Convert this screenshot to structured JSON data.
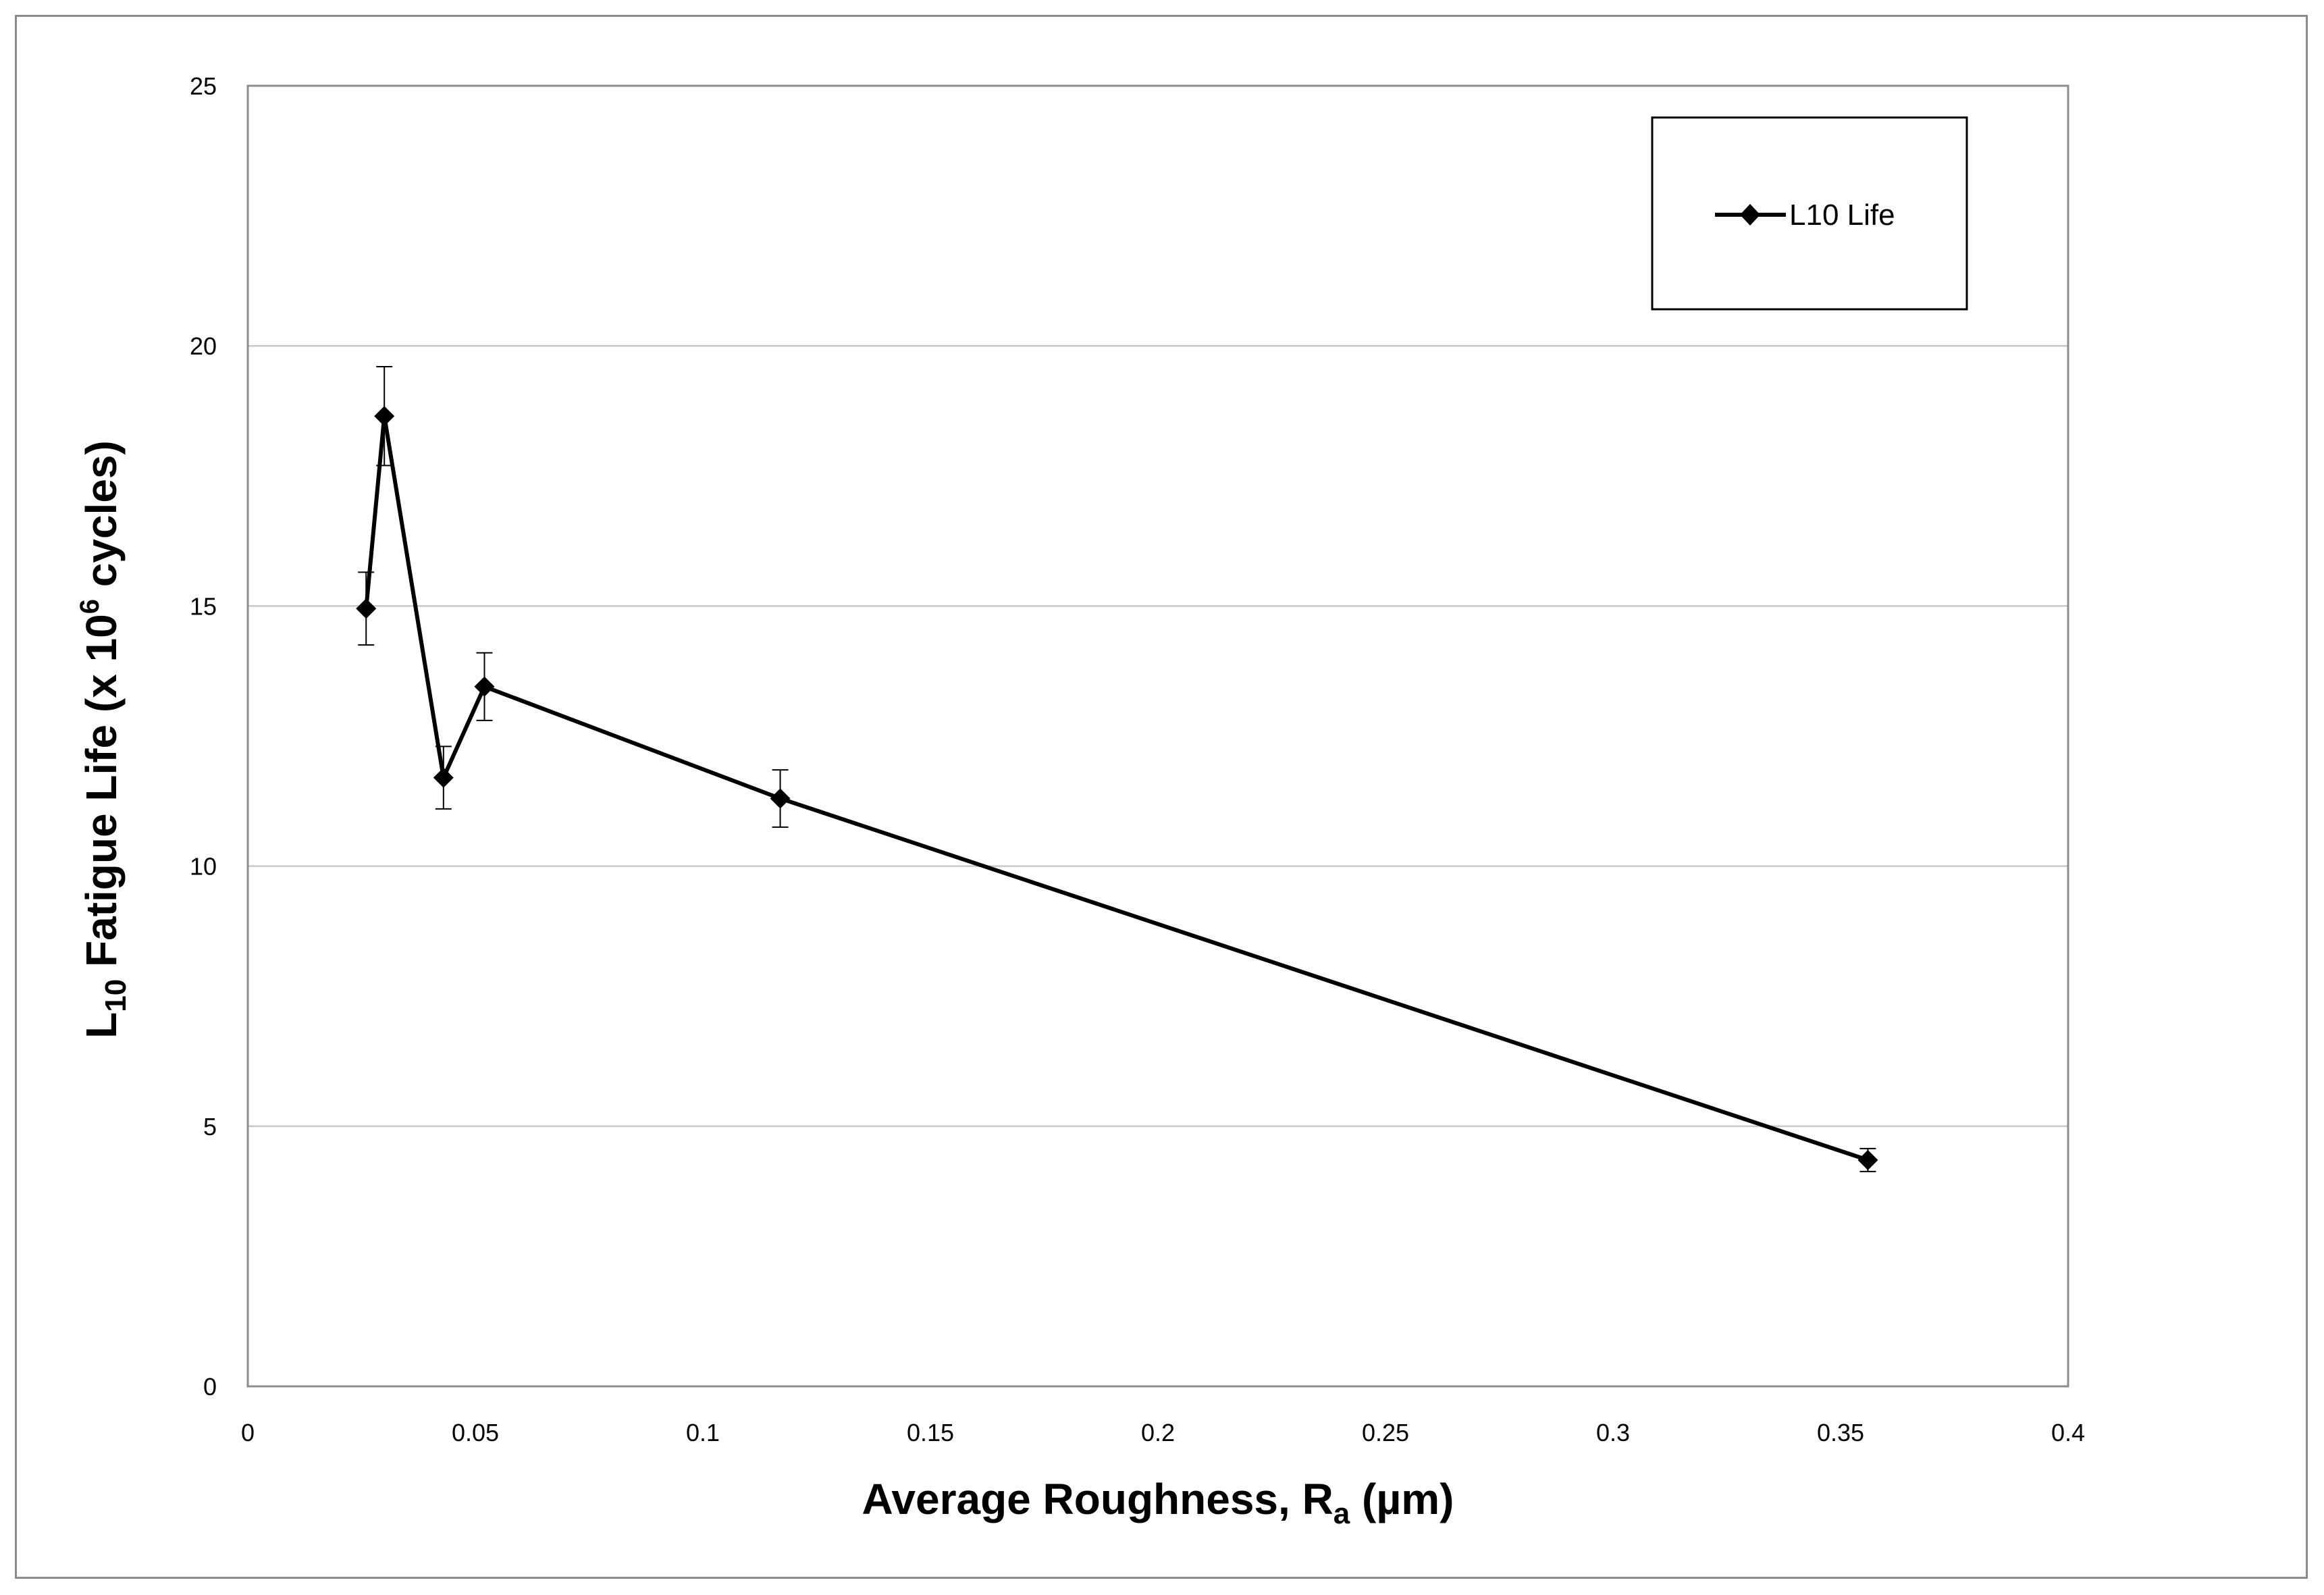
{
  "chart_data": {
    "type": "line",
    "title": "",
    "xlabel": {
      "main": "Average Roughness, R",
      "sub": "a",
      "unit": " (µm)"
    },
    "ylabel": {
      "pre": "L",
      "sub": "10",
      "mid": " Fatigue Life (x 10",
      "sup": "6",
      "post": " cycles)"
    },
    "xlim": [
      0,
      0.4
    ],
    "ylim": [
      0,
      25
    ],
    "xticks": [
      0,
      0.05,
      0.1,
      0.15,
      0.2,
      0.25,
      0.3,
      0.35,
      0.4
    ],
    "xtick_labels": [
      "0",
      "0.05",
      "0.1",
      "0.15",
      "0.2",
      "0.25",
      "0.3",
      "0.35",
      "0.4"
    ],
    "yticks": [
      0,
      5,
      10,
      15,
      20,
      25
    ],
    "ytick_labels": [
      "0",
      "5",
      "10",
      "15",
      "20",
      "25"
    ],
    "grid": "horizontal",
    "legend_position": "top-right",
    "series": [
      {
        "name": "L10 Life",
        "color": "#000000",
        "marker": "diamond",
        "x": [
          0.026,
          0.03,
          0.043,
          0.052,
          0.117,
          0.356
        ],
        "y": [
          14.95,
          18.65,
          11.7,
          13.45,
          11.3,
          4.35
        ],
        "error": [
          0.7,
          0.95,
          0.6,
          0.65,
          0.55,
          0.22
        ]
      }
    ]
  }
}
